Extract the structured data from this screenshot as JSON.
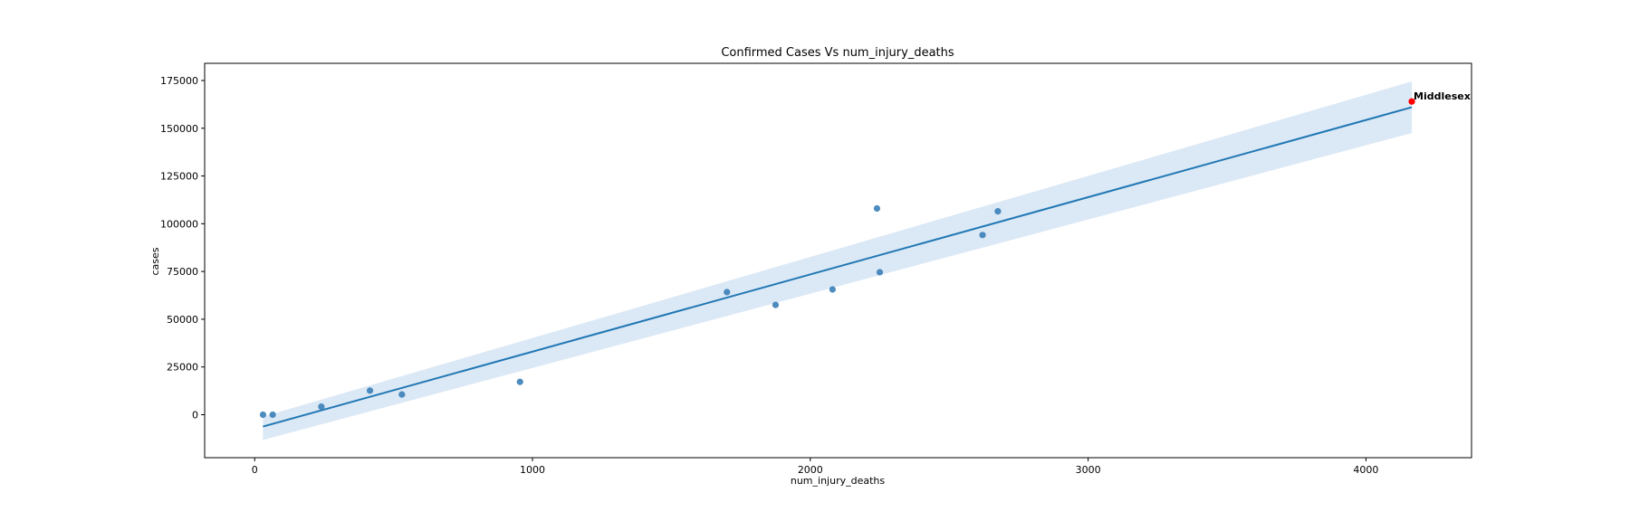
{
  "chart_data": {
    "type": "scatter",
    "title": "Confirmed Cases Vs num_injury_deaths",
    "xlabel": "num_injury_deaths",
    "ylabel": "cases",
    "xlim": [
      -180,
      4380
    ],
    "ylim": [
      -22500,
      184000
    ],
    "xticks": [
      0,
      1000,
      2000,
      3000,
      4000
    ],
    "yticks": [
      0,
      25000,
      50000,
      75000,
      100000,
      125000,
      150000,
      175000
    ],
    "grid": false,
    "colors": {
      "points": "#3a80b8",
      "line": "#1f77b4",
      "band": "#c7dcef",
      "highlight": "#ff0000"
    },
    "points": [
      {
        "x": 30,
        "y": 0
      },
      {
        "x": 65,
        "y": 0
      },
      {
        "x": 240,
        "y": 4200
      },
      {
        "x": 415,
        "y": 12600
      },
      {
        "x": 530,
        "y": 10600
      },
      {
        "x": 955,
        "y": 17200
      },
      {
        "x": 1700,
        "y": 64200
      },
      {
        "x": 1875,
        "y": 57500
      },
      {
        "x": 2080,
        "y": 65600
      },
      {
        "x": 2240,
        "y": 108000
      },
      {
        "x": 2250,
        "y": 74600
      },
      {
        "x": 2620,
        "y": 94100
      },
      {
        "x": 2675,
        "y": 106500
      }
    ],
    "regression": {
      "x": [
        30,
        4165
      ],
      "y": [
        -6200,
        161000
      ],
      "ci_upper": [
        -1000,
        174500
      ],
      "ci_lower": [
        -13200,
        147500
      ]
    },
    "highlight": {
      "x": 4165,
      "y": 164000,
      "label": "Middlesex"
    }
  }
}
